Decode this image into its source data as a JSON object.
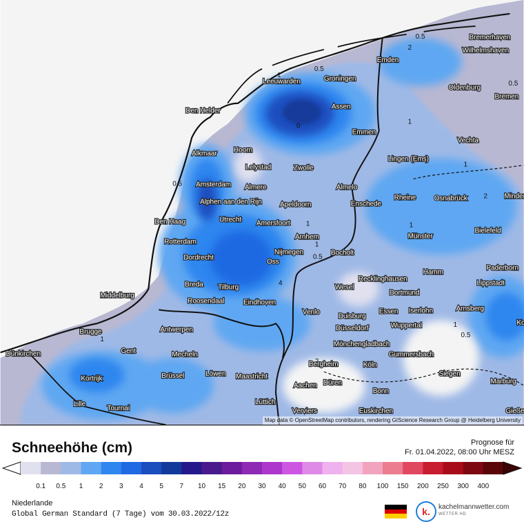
{
  "title": "Schneehöhe (cm)",
  "forecast_label": "Prognose für",
  "forecast_date": "Fr. 01.04.2022, 08:00 Uhr MESZ",
  "region": "Niederlande",
  "model": "Global German Standard (7 Tage) vom 30.03.2022/12z",
  "attribution": "Map data © OpenStreetMap contributors, rendering GIScience Research Group @ Heidelberg University",
  "brand": {
    "name": "kachelmannwetter.com",
    "sub": "WETTER HD",
    "logo_letter": "k."
  },
  "flag_colors": [
    "#000000",
    "#dd0000",
    "#ffce00"
  ],
  "legend": {
    "labels": [
      "0.1",
      "0.5",
      "1",
      "2",
      "3",
      "4",
      "5",
      "7",
      "10",
      "15",
      "20",
      "30",
      "40",
      "50",
      "60",
      "70",
      "80",
      "100",
      "150",
      "200",
      "250",
      "300",
      "400"
    ],
    "colors": [
      "#e0e0ef",
      "#b8b8d2",
      "#9fb9e6",
      "#5fa7f2",
      "#2f86ef",
      "#1f69e2",
      "#1a4dbe",
      "#123a9a",
      "#24198a",
      "#4a1a8c",
      "#6c1c9c",
      "#8e2ab4",
      "#ad36cc",
      "#cc56e2",
      "#e08ae8",
      "#efb2ef",
      "#f4c4e4",
      "#f2a4bf",
      "#ec7c90",
      "#e04860",
      "#c81c30",
      "#a80c1a",
      "#7d0812",
      "#5a0508"
    ],
    "left_arrow_color": "#ffffff",
    "right_arrow_color": "#3a0304"
  },
  "contour_labels": [
    "0.5",
    "2",
    "0.5",
    "1",
    "0",
    "1",
    "0.5",
    "1",
    "0.5",
    "2",
    "4",
    "1",
    "1",
    "0.5",
    "1",
    "2",
    "1",
    "1",
    "0.5"
  ],
  "cities": [
    {
      "name": "Bremerhaven"
    },
    {
      "name": "Wilhelmshaven"
    },
    {
      "name": "Emden"
    },
    {
      "name": "Bremen"
    },
    {
      "name": "Leeuwarden"
    },
    {
      "name": "Groningen"
    },
    {
      "name": "Oldenburg"
    },
    {
      "name": "Assen"
    },
    {
      "name": "Den Helder"
    },
    {
      "name": "Emmen"
    },
    {
      "name": "Vechta"
    },
    {
      "name": "Alkmaar"
    },
    {
      "name": "Hoorn"
    },
    {
      "name": "Lelystad"
    },
    {
      "name": "Zwolle"
    },
    {
      "name": "Lingen (Ems)"
    },
    {
      "name": "Amsterdam"
    },
    {
      "name": "Almere"
    },
    {
      "name": "Almelo"
    },
    {
      "name": "Alphen aan den Rijn"
    },
    {
      "name": "Apeldoorn"
    },
    {
      "name": "Enschede"
    },
    {
      "name": "Rheine"
    },
    {
      "name": "Osnabrück"
    },
    {
      "name": "Minden"
    },
    {
      "name": "Den Haag"
    },
    {
      "name": "Utrecht"
    },
    {
      "name": "Amersfoort"
    },
    {
      "name": "Bielefeld"
    },
    {
      "name": "Rotterdam"
    },
    {
      "name": "Arnhem"
    },
    {
      "name": "Münster"
    },
    {
      "name": "Dordrecht"
    },
    {
      "name": "Nijmegen"
    },
    {
      "name": "Bocholt"
    },
    {
      "name": "Oss"
    },
    {
      "name": "Paderborn"
    },
    {
      "name": "Hamm"
    },
    {
      "name": "Lippstadt"
    },
    {
      "name": "Breda"
    },
    {
      "name": "Tilburg"
    },
    {
      "name": "Recklinghausen"
    },
    {
      "name": "Wesel"
    },
    {
      "name": "Middelburg"
    },
    {
      "name": "Roosendaal"
    },
    {
      "name": "Eindhoven"
    },
    {
      "name": "Dortmund"
    },
    {
      "name": "Arnsberg"
    },
    {
      "name": "Venlo"
    },
    {
      "name": "Essen"
    },
    {
      "name": "Iserlohn"
    },
    {
      "name": "Duisburg"
    },
    {
      "name": "Wuppertal"
    },
    {
      "name": "Korbach"
    },
    {
      "name": "Antwerpen"
    },
    {
      "name": "Düsseldorf"
    },
    {
      "name": "Brugge"
    },
    {
      "name": "Mönchengladbach"
    },
    {
      "name": "Dünkirchen"
    },
    {
      "name": "Gent"
    },
    {
      "name": "Mecheln"
    },
    {
      "name": "Gummersbach"
    },
    {
      "name": "Bergheim"
    },
    {
      "name": "Köln"
    },
    {
      "name": "Siegen"
    },
    {
      "name": "Brüssel"
    },
    {
      "name": "Löwen"
    },
    {
      "name": "Maastricht"
    },
    {
      "name": "Kortrijk"
    },
    {
      "name": "Düren"
    },
    {
      "name": "Marburg"
    },
    {
      "name": "Aachen"
    },
    {
      "name": "Bonn"
    },
    {
      "name": "Lille"
    },
    {
      "name": "Tournai"
    },
    {
      "name": "Lüttich"
    },
    {
      "name": "Verviers"
    },
    {
      "name": "Euskirchen"
    },
    {
      "name": "Gießen"
    }
  ]
}
